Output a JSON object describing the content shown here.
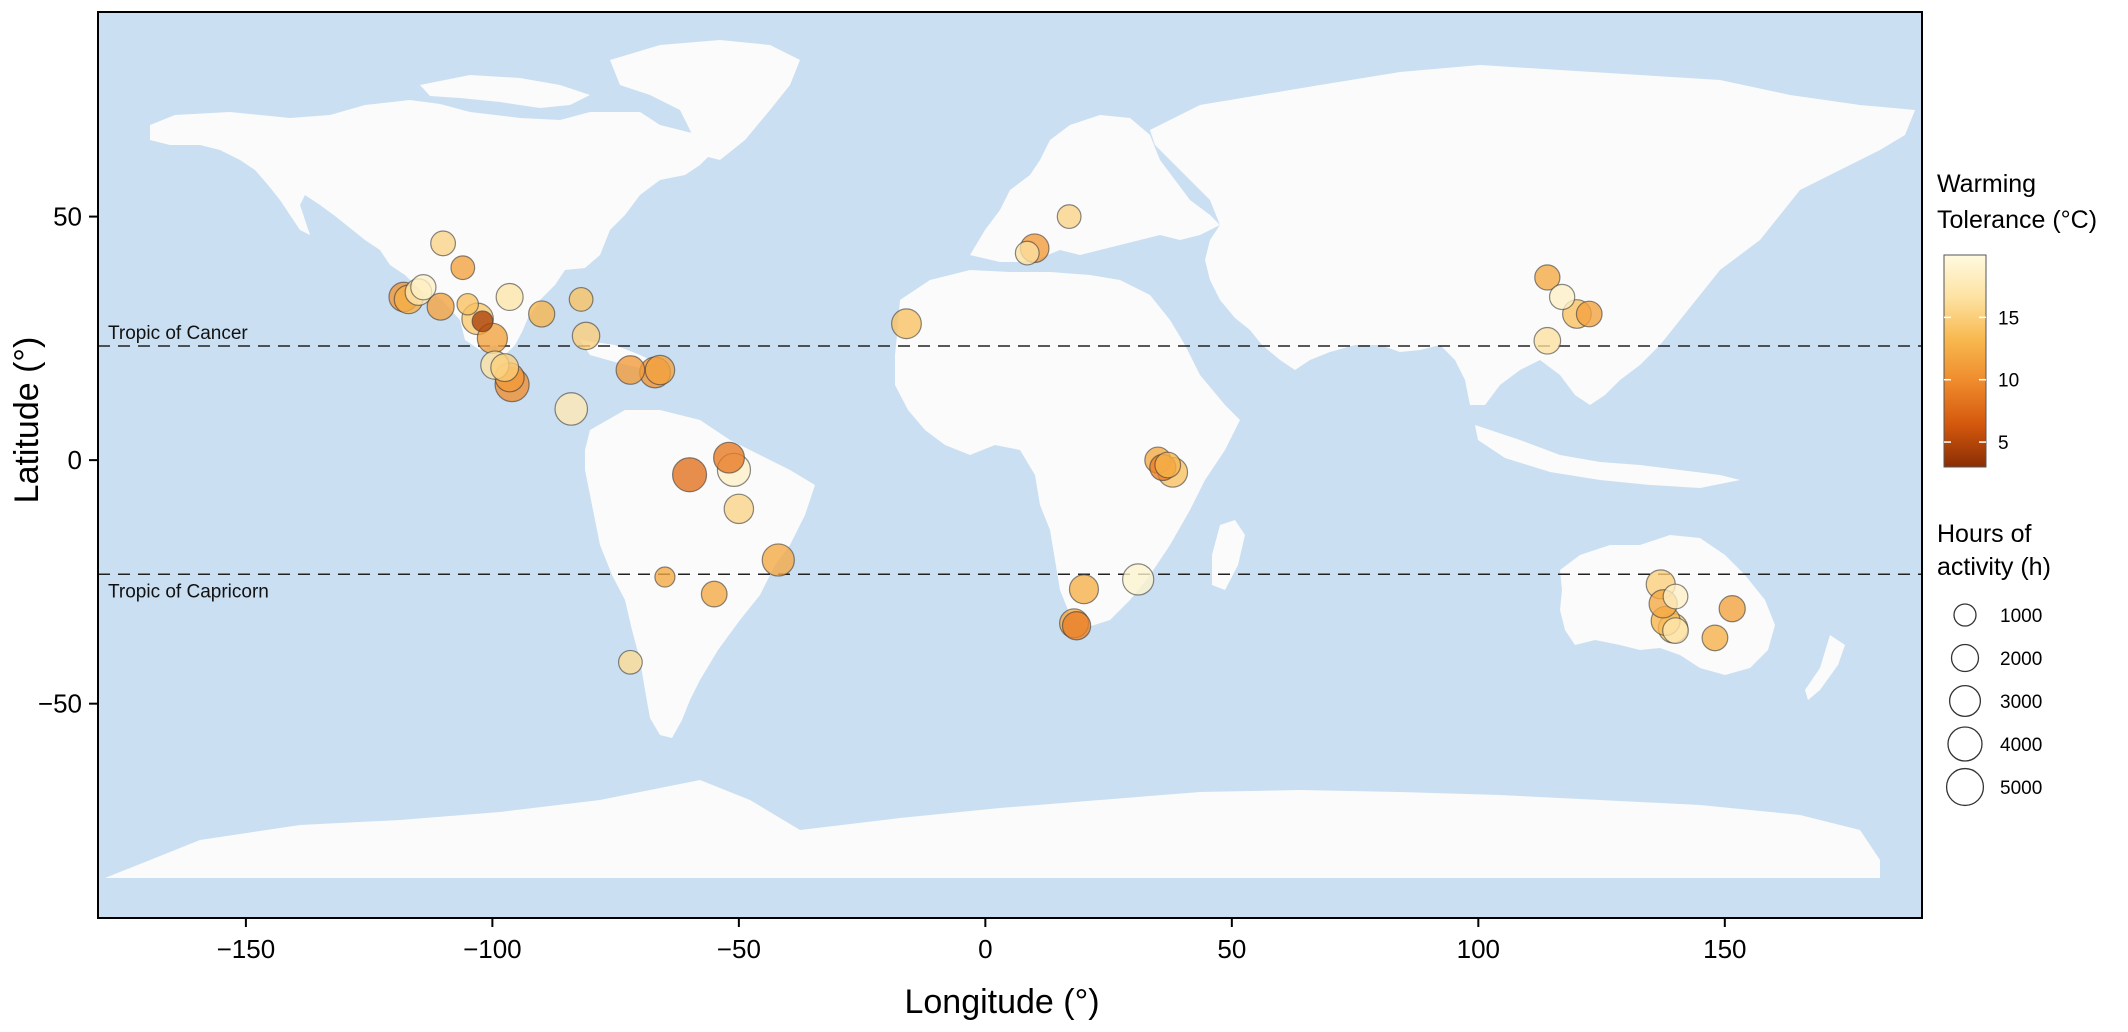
{
  "chart_data": {
    "type": "scatter",
    "xlabel": "Longitude (°)",
    "ylabel": "Latitude (°)",
    "xlim": [
      -180,
      190
    ],
    "ylim": [
      -94,
      92
    ],
    "xticks": [
      {
        "value": -150,
        "label": "−150"
      },
      {
        "value": -100,
        "label": "−100"
      },
      {
        "value": -50,
        "label": "−50"
      },
      {
        "value": 0,
        "label": "0"
      },
      {
        "value": 50,
        "label": "50"
      },
      {
        "value": 100,
        "label": "100"
      },
      {
        "value": 150,
        "label": "150"
      }
    ],
    "yticks": [
      {
        "value": 50,
        "label": "50"
      },
      {
        "value": 0,
        "label": "0"
      },
      {
        "value": -50,
        "label": "−50"
      }
    ],
    "reference_lines": [
      {
        "name": "Tropic of Cancer",
        "lat": 23.44
      },
      {
        "name": "Tropic of Capricorn",
        "lat": -23.44
      }
    ],
    "colors": {
      "ocean": "#cbdff2",
      "land": "#fbfbfb",
      "frame": "#000000",
      "marker_edge": "#3a3a3a"
    },
    "color_legend": {
      "title_lines": [
        "Warming",
        "Tolerance (°C)"
      ],
      "range": [
        3,
        20
      ],
      "ticks": [
        5,
        10,
        15
      ],
      "stops": [
        "#8a2e05",
        "#d4580d",
        "#ef8a2c",
        "#f8b84e",
        "#fde2a2",
        "#fffae0"
      ]
    },
    "size_legend": {
      "title_lines": [
        "Hours of",
        "activity (h)"
      ],
      "values": [
        1000,
        2000,
        3000,
        4000,
        5000
      ]
    },
    "points": [
      {
        "lon": -110,
        "lat": 44.5,
        "wt": 15.5,
        "hours": 1500
      },
      {
        "lon": -106,
        "lat": 39.5,
        "wt": 11.5,
        "hours": 1300
      },
      {
        "lon": -118,
        "lat": 33.5,
        "wt": 10.5,
        "hours": 2600
      },
      {
        "lon": -117,
        "lat": 33.0,
        "wt": 12.5,
        "hours": 2400
      },
      {
        "lon": -115,
        "lat": 34.5,
        "wt": 17.5,
        "hours": 1900
      },
      {
        "lon": -114,
        "lat": 35.5,
        "wt": 18.5,
        "hours": 1600
      },
      {
        "lon": -110.5,
        "lat": 31.5,
        "wt": 11.5,
        "hours": 2000
      },
      {
        "lon": -105,
        "lat": 32.0,
        "wt": 14.0,
        "hours": 900
      },
      {
        "lon": -103,
        "lat": 29.0,
        "wt": 14.5,
        "hours": 3200
      },
      {
        "lon": -102,
        "lat": 28.5,
        "wt": 4.5,
        "hours": 800
      },
      {
        "lon": -96.5,
        "lat": 33.5,
        "wt": 17.0,
        "hours": 2000
      },
      {
        "lon": -90,
        "lat": 30.0,
        "wt": 13.0,
        "hours": 1800
      },
      {
        "lon": -82,
        "lat": 33.0,
        "wt": 14.0,
        "hours": 1300
      },
      {
        "lon": -81,
        "lat": 25.5,
        "wt": 15.0,
        "hours": 2100
      },
      {
        "lon": -100,
        "lat": 25.0,
        "wt": 11.5,
        "hours": 2800
      },
      {
        "lon": -99.5,
        "lat": 19.5,
        "wt": 16.5,
        "hours": 2300
      },
      {
        "lon": -97.5,
        "lat": 19.0,
        "wt": 15.0,
        "hours": 2200
      },
      {
        "lon": -96.5,
        "lat": 17.0,
        "wt": 11.0,
        "hours": 2500
      },
      {
        "lon": -96,
        "lat": 15.5,
        "wt": 10.0,
        "hours": 4000
      },
      {
        "lon": -84,
        "lat": 10.5,
        "wt": 17.5,
        "hours": 3500
      },
      {
        "lon": -72,
        "lat": 18.5,
        "wt": 11.0,
        "hours": 2400
      },
      {
        "lon": -67,
        "lat": 18.0,
        "wt": 10.5,
        "hours": 3000
      },
      {
        "lon": -66,
        "lat": 18.5,
        "wt": 11.5,
        "hours": 2600
      },
      {
        "lon": -60,
        "lat": -3.0,
        "wt": 8.0,
        "hours": 4000
      },
      {
        "lon": -52,
        "lat": 0.5,
        "wt": 8.5,
        "hours": 3000
      },
      {
        "lon": -51,
        "lat": -2.0,
        "wt": 18.5,
        "hours": 3700
      },
      {
        "lon": -50,
        "lat": -10.0,
        "wt": 15.5,
        "hours": 2600
      },
      {
        "lon": -42,
        "lat": -20.5,
        "wt": 12.0,
        "hours": 3400
      },
      {
        "lon": -55,
        "lat": -27.5,
        "wt": 12.0,
        "hours": 1700
      },
      {
        "lon": -65,
        "lat": -24.0,
        "wt": 12.0,
        "hours": 700
      },
      {
        "lon": -72,
        "lat": -41.5,
        "wt": 16.0,
        "hours": 1300
      },
      {
        "lon": -16,
        "lat": 28.0,
        "wt": 14.0,
        "hours": 2700
      },
      {
        "lon": 17,
        "lat": 50.0,
        "wt": 15.5,
        "hours": 1300
      },
      {
        "lon": 10,
        "lat": 43.5,
        "wt": 11.0,
        "hours": 2400
      },
      {
        "lon": 8.5,
        "lat": 42.5,
        "wt": 16.5,
        "hours": 1300
      },
      {
        "lon": 35,
        "lat": 0.0,
        "wt": 12.0,
        "hours": 1800
      },
      {
        "lon": 36,
        "lat": -1.5,
        "wt": 9.0,
        "hours": 1800
      },
      {
        "lon": 37,
        "lat": -1.0,
        "wt": 13.0,
        "hours": 1700
      },
      {
        "lon": 38,
        "lat": -2.5,
        "wt": 14.0,
        "hours": 2700
      },
      {
        "lon": 20,
        "lat": -26.5,
        "wt": 12.5,
        "hours": 2500
      },
      {
        "lon": 18,
        "lat": -33.5,
        "wt": 12.0,
        "hours": 2500
      },
      {
        "lon": 18.5,
        "lat": -34.0,
        "wt": 9.0,
        "hours": 2300
      },
      {
        "lon": 31,
        "lat": -24.5,
        "wt": 19.0,
        "hours": 3100
      },
      {
        "lon": 114,
        "lat": 37.5,
        "wt": 12.0,
        "hours": 1600
      },
      {
        "lon": 117,
        "lat": 33.5,
        "wt": 18.5,
        "hours": 1600
      },
      {
        "lon": 114,
        "lat": 24.5,
        "wt": 16.5,
        "hours": 1900
      },
      {
        "lon": 120,
        "lat": 30.0,
        "wt": 14.0,
        "hours": 2400
      },
      {
        "lon": 122.5,
        "lat": 30.0,
        "wt": 11.5,
        "hours": 1700
      },
      {
        "lon": 137,
        "lat": -25.5,
        "wt": 15.0,
        "hours": 2500
      },
      {
        "lon": 137.5,
        "lat": -29.5,
        "wt": 12.0,
        "hours": 2300
      },
      {
        "lon": 140,
        "lat": -28.0,
        "wt": 18.5,
        "hours": 1500
      },
      {
        "lon": 138,
        "lat": -33.0,
        "wt": 13.0,
        "hours": 2500
      },
      {
        "lon": 139.5,
        "lat": -34.5,
        "wt": 15.0,
        "hours": 2600
      },
      {
        "lon": 140,
        "lat": -35.0,
        "wt": 17.5,
        "hours": 1700
      },
      {
        "lon": 151.5,
        "lat": -30.5,
        "wt": 11.5,
        "hours": 1800
      },
      {
        "lon": 148,
        "lat": -36.5,
        "wt": 12.5,
        "hours": 1700
      }
    ]
  }
}
